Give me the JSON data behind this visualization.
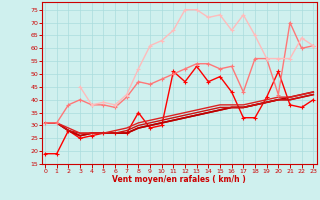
{
  "xlabel": "Vent moyen/en rafales ( km/h )",
  "bg_color": "#cff0ee",
  "grid_color": "#aadddd",
  "ylim": [
    15,
    78
  ],
  "yticks": [
    15,
    20,
    25,
    30,
    35,
    40,
    45,
    50,
    55,
    60,
    65,
    70,
    75
  ],
  "xlim": [
    -0.3,
    23.3
  ],
  "xticks": [
    0,
    1,
    2,
    3,
    4,
    5,
    6,
    7,
    8,
    9,
    10,
    11,
    12,
    13,
    14,
    15,
    16,
    17,
    18,
    19,
    20,
    21,
    22,
    23
  ],
  "lines": [
    {
      "color": "#ff0000",
      "values": [
        19,
        19,
        28,
        25,
        26,
        27,
        27,
        27,
        35,
        29,
        30,
        51,
        47,
        53,
        47,
        49,
        43,
        33,
        33,
        41,
        51,
        38,
        37,
        40
      ],
      "marker": "+",
      "ms": 3,
      "lw": 1.0,
      "start": 0
    },
    {
      "color": "#cc0000",
      "values": [
        31,
        31,
        28,
        26,
        27,
        27,
        27,
        27,
        29,
        30,
        31,
        32,
        33,
        34,
        35,
        36,
        37,
        37,
        38,
        39,
        40,
        40,
        41,
        42
      ],
      "marker": null,
      "ms": 0,
      "lw": 1.2,
      "start": 0
    },
    {
      "color": "#bb0000",
      "values": [
        31,
        31,
        28,
        26,
        27,
        27,
        27,
        27,
        29,
        30,
        31,
        32,
        33,
        34,
        35,
        36,
        37,
        37,
        38,
        39,
        40,
        41,
        42,
        43
      ],
      "marker": null,
      "ms": 0,
      "lw": 1.2,
      "start": 0
    },
    {
      "color": "#cc1111",
      "values": [
        31,
        31,
        28,
        27,
        27,
        27,
        27,
        28,
        30,
        31,
        32,
        33,
        34,
        35,
        36,
        37,
        37,
        37,
        38,
        39,
        40,
        40,
        41,
        42
      ],
      "marker": null,
      "ms": 0,
      "lw": 1.0,
      "start": 0
    },
    {
      "color": "#dd2222",
      "values": [
        31,
        31,
        29,
        27,
        27,
        27,
        28,
        29,
        31,
        32,
        33,
        34,
        35,
        36,
        37,
        38,
        38,
        38,
        39,
        40,
        41,
        41,
        42,
        43
      ],
      "marker": null,
      "ms": 0,
      "lw": 1.0,
      "start": 0
    },
    {
      "color": "#ff7777",
      "values": [
        31,
        31,
        38,
        40,
        38,
        38,
        37,
        41,
        47,
        46,
        48,
        50,
        52,
        54,
        54,
        52,
        53,
        43,
        56,
        56,
        42,
        70,
        60,
        61
      ],
      "marker": "+",
      "ms": 3,
      "lw": 1.0,
      "start": 0
    },
    {
      "color": "#ffbbbb",
      "values": [
        null,
        null,
        null,
        45,
        38,
        39,
        38,
        42,
        52,
        61,
        63,
        67,
        75,
        75,
        72,
        73,
        67,
        73,
        65,
        56,
        56,
        56,
        64,
        61
      ],
      "marker": "+",
      "ms": 3,
      "lw": 1.0,
      "start": 3
    }
  ]
}
